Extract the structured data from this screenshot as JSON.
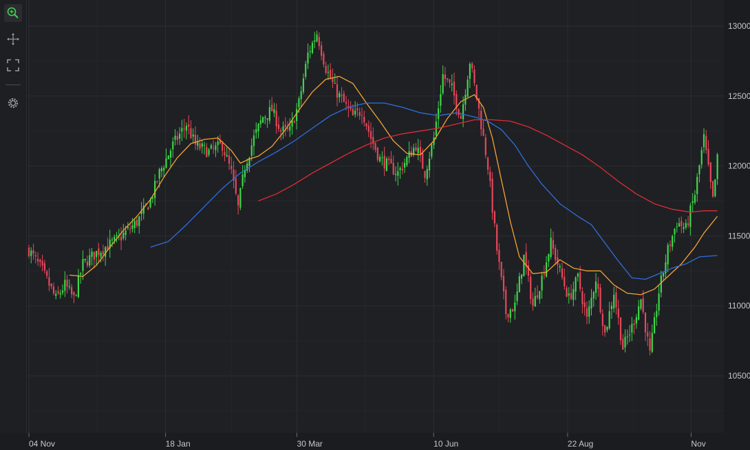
{
  "toolbar": {
    "tools": [
      {
        "name": "zoom-icon",
        "active": true
      },
      {
        "name": "pan-icon",
        "active": false
      },
      {
        "name": "fit-to-screen-icon",
        "active": false
      },
      {
        "name": "settings-icon",
        "active": false
      }
    ]
  },
  "colors": {
    "background": "#1b1c20",
    "grid": "#2c2d33",
    "bullish": "#3fd64b",
    "bearish": "#e8475a",
    "ma_short": "#f7a433",
    "ma_mid": "#2f6fe0",
    "ma_long": "#e02d33"
  },
  "chart_data": {
    "type": "candlestick",
    "title": "",
    "xlabel": "",
    "ylabel": "",
    "ylim": [
      10150,
      13150
    ],
    "y_ticks": [
      10500,
      11000,
      11500,
      12000,
      12500,
      13000
    ],
    "x_ticks": [
      "04 Nov",
      "18 Jan",
      "30 Mar",
      "10 Jun",
      "22 Aug",
      "Nov"
    ],
    "x_tick_index": [
      0,
      52,
      102,
      154,
      205,
      252
    ],
    "grid": true,
    "num_candles": 262,
    "close_path": [
      [
        0,
        11400
      ],
      [
        6,
        11250
      ],
      [
        12,
        11050
      ],
      [
        16,
        11150
      ],
      [
        20,
        11050
      ],
      [
        24,
        11300
      ],
      [
        30,
        11380
      ],
      [
        40,
        11480
      ],
      [
        48,
        11600
      ],
      [
        54,
        11750
      ],
      [
        58,
        11950
      ],
      [
        64,
        12150
      ],
      [
        70,
        12300
      ],
      [
        74,
        12150
      ],
      [
        80,
        12100
      ],
      [
        86,
        12150
      ],
      [
        90,
        11950
      ],
      [
        93,
        11700
      ],
      [
        96,
        12000
      ],
      [
        100,
        12200
      ],
      [
        104,
        12350
      ],
      [
        108,
        12400
      ],
      [
        112,
        12250
      ],
      [
        116,
        12250
      ],
      [
        120,
        12450
      ],
      [
        124,
        12800
      ],
      [
        128,
        12950
      ],
      [
        132,
        12700
      ],
      [
        136,
        12550
      ],
      [
        140,
        12450
      ],
      [
        144,
        12350
      ],
      [
        148,
        12400
      ],
      [
        152,
        12200
      ],
      [
        156,
        12050
      ],
      [
        160,
        12000
      ],
      [
        164,
        11950
      ],
      [
        168,
        12050
      ],
      [
        172,
        12150
      ],
      [
        176,
        11950
      ],
      [
        180,
        12200
      ],
      [
        184,
        12650
      ],
      [
        188,
        12550
      ],
      [
        192,
        12350
      ],
      [
        196,
        12750
      ],
      [
        200,
        12400
      ],
      [
        204,
        12000
      ],
      [
        208,
        11400
      ],
      [
        212,
        10950
      ],
      [
        216,
        11000
      ],
      [
        220,
        11350
      ],
      [
        224,
        11000
      ],
      [
        228,
        11200
      ],
      [
        232,
        11450
      ],
      [
        236,
        11250
      ],
      [
        240,
        11050
      ],
      [
        244,
        11200
      ],
      [
        248,
        10900
      ],
      [
        252,
        11200
      ],
      [
        256,
        10800
      ],
      [
        260,
        11100
      ],
      [
        264,
        10700
      ],
      [
        268,
        10850
      ],
      [
        272,
        11050
      ],
      [
        276,
        10650
      ],
      [
        280,
        11100
      ],
      [
        284,
        11400
      ],
      [
        288,
        11600
      ],
      [
        292,
        11550
      ],
      [
        296,
        11800
      ],
      [
        300,
        12200
      ],
      [
        304,
        11750
      ],
      [
        306,
        12050
      ]
    ],
    "series": [
      {
        "type": "line",
        "color": "#f7a433",
        "points": [
          [
            18,
            11220
          ],
          [
            24,
            11210
          ],
          [
            30,
            11290
          ],
          [
            36,
            11420
          ],
          [
            42,
            11540
          ],
          [
            48,
            11640
          ],
          [
            54,
            11760
          ],
          [
            60,
            11920
          ],
          [
            66,
            12060
          ],
          [
            72,
            12160
          ],
          [
            78,
            12190
          ],
          [
            84,
            12200
          ],
          [
            90,
            12110
          ],
          [
            94,
            12020
          ],
          [
            98,
            12050
          ],
          [
            102,
            12070
          ],
          [
            108,
            12140
          ],
          [
            114,
            12260
          ],
          [
            120,
            12400
          ],
          [
            126,
            12530
          ],
          [
            132,
            12620
          ],
          [
            138,
            12640
          ],
          [
            144,
            12590
          ],
          [
            150,
            12450
          ],
          [
            156,
            12320
          ],
          [
            162,
            12180
          ],
          [
            168,
            12090
          ],
          [
            174,
            12080
          ],
          [
            180,
            12180
          ],
          [
            186,
            12340
          ],
          [
            192,
            12460
          ],
          [
            198,
            12510
          ],
          [
            202,
            12420
          ],
          [
            206,
            12200
          ],
          [
            210,
            11900
          ],
          [
            214,
            11600
          ],
          [
            218,
            11350
          ],
          [
            224,
            11230
          ],
          [
            230,
            11240
          ],
          [
            236,
            11330
          ],
          [
            242,
            11270
          ],
          [
            248,
            11250
          ],
          [
            254,
            11250
          ],
          [
            260,
            11150
          ],
          [
            266,
            11090
          ],
          [
            272,
            11080
          ],
          [
            278,
            11120
          ],
          [
            284,
            11210
          ],
          [
            290,
            11300
          ],
          [
            296,
            11420
          ],
          [
            300,
            11520
          ],
          [
            306,
            11640
          ]
        ]
      },
      {
        "type": "line",
        "color": "#2f6fe0",
        "points": [
          [
            54,
            11420
          ],
          [
            62,
            11460
          ],
          [
            70,
            11580
          ],
          [
            78,
            11710
          ],
          [
            86,
            11840
          ],
          [
            94,
            11950
          ],
          [
            102,
            12030
          ],
          [
            110,
            12100
          ],
          [
            118,
            12180
          ],
          [
            126,
            12270
          ],
          [
            134,
            12360
          ],
          [
            142,
            12420
          ],
          [
            150,
            12450
          ],
          [
            158,
            12450
          ],
          [
            166,
            12420
          ],
          [
            174,
            12380
          ],
          [
            182,
            12360
          ],
          [
            190,
            12380
          ],
          [
            198,
            12350
          ],
          [
            204,
            12320
          ],
          [
            210,
            12260
          ],
          [
            216,
            12150
          ],
          [
            222,
            12000
          ],
          [
            228,
            11870
          ],
          [
            236,
            11730
          ],
          [
            244,
            11640
          ],
          [
            250,
            11580
          ],
          [
            256,
            11450
          ],
          [
            262,
            11320
          ],
          [
            268,
            11200
          ],
          [
            274,
            11190
          ],
          [
            280,
            11230
          ],
          [
            286,
            11270
          ],
          [
            292,
            11300
          ],
          [
            298,
            11350
          ],
          [
            306,
            11360
          ]
        ]
      },
      {
        "type": "line",
        "color": "#e02d33",
        "points": [
          [
            102,
            11750
          ],
          [
            110,
            11800
          ],
          [
            118,
            11870
          ],
          [
            126,
            11950
          ],
          [
            134,
            12020
          ],
          [
            142,
            12090
          ],
          [
            150,
            12150
          ],
          [
            158,
            12200
          ],
          [
            166,
            12230
          ],
          [
            174,
            12250
          ],
          [
            182,
            12270
          ],
          [
            190,
            12300
          ],
          [
            198,
            12330
          ],
          [
            206,
            12330
          ],
          [
            214,
            12320
          ],
          [
            222,
            12280
          ],
          [
            230,
            12220
          ],
          [
            238,
            12150
          ],
          [
            246,
            12080
          ],
          [
            254,
            11990
          ],
          [
            262,
            11890
          ],
          [
            270,
            11800
          ],
          [
            278,
            11730
          ],
          [
            286,
            11690
          ],
          [
            294,
            11670
          ],
          [
            300,
            11680
          ],
          [
            306,
            11680
          ]
        ]
      }
    ]
  }
}
